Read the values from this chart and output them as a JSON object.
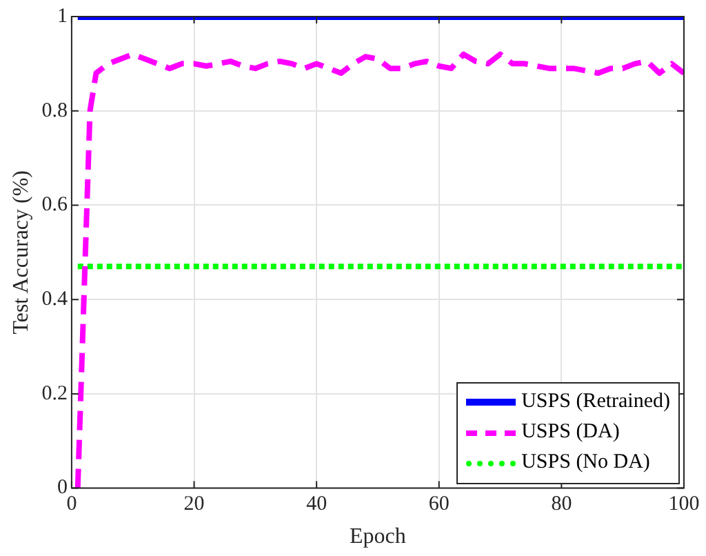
{
  "chart_data": {
    "type": "line",
    "xlabel": "Epoch",
    "ylabel": "Test Accuracy (%)",
    "xlim": [
      0,
      100
    ],
    "xticks": [
      0,
      20,
      40,
      60,
      80,
      100
    ],
    "ylim": [
      0,
      1
    ],
    "yticks": [
      0,
      0.2,
      0.4,
      0.6,
      0.8,
      1
    ],
    "grid": true,
    "legend": "bottom right",
    "marker": "none",
    "series": [
      {
        "name": "USPS (Retrained)",
        "color": "#0000ff",
        "line_style": "solid",
        "x": [
          1,
          100
        ],
        "values": [
          1,
          1
        ]
      },
      {
        "name": "USPS (DA)",
        "color": "#ff00ff",
        "line_style": "dashed",
        "x": [
          1,
          2,
          3,
          4,
          5,
          6,
          8,
          10,
          12,
          14,
          16,
          18,
          20,
          22,
          24,
          26,
          28,
          30,
          32,
          34,
          36,
          38,
          40,
          42,
          44,
          46,
          48,
          50,
          52,
          54,
          56,
          58,
          60,
          62,
          64,
          66,
          68,
          70,
          72,
          74,
          76,
          78,
          80,
          82,
          84,
          86,
          88,
          90,
          92,
          94,
          96,
          98,
          100
        ],
        "values": [
          0,
          0.4,
          0.8,
          0.88,
          0.89,
          0.9,
          0.91,
          0.92,
          0.91,
          0.9,
          0.89,
          0.9,
          0.9,
          0.895,
          0.9,
          0.905,
          0.895,
          0.89,
          0.9,
          0.905,
          0.9,
          0.89,
          0.9,
          0.89,
          0.88,
          0.9,
          0.915,
          0.91,
          0.89,
          0.89,
          0.9,
          0.905,
          0.895,
          0.89,
          0.92,
          0.905,
          0.9,
          0.92,
          0.9,
          0.9,
          0.895,
          0.89,
          0.89,
          0.89,
          0.885,
          0.88,
          0.89,
          0.89,
          0.9,
          0.905,
          0.88,
          0.9,
          0.88
        ]
      },
      {
        "name": "USPS (No DA)",
        "color": "#00ff00",
        "line_style": "dotted",
        "x": [
          1,
          100
        ],
        "values": [
          0.47,
          0.47
        ]
      }
    ]
  }
}
